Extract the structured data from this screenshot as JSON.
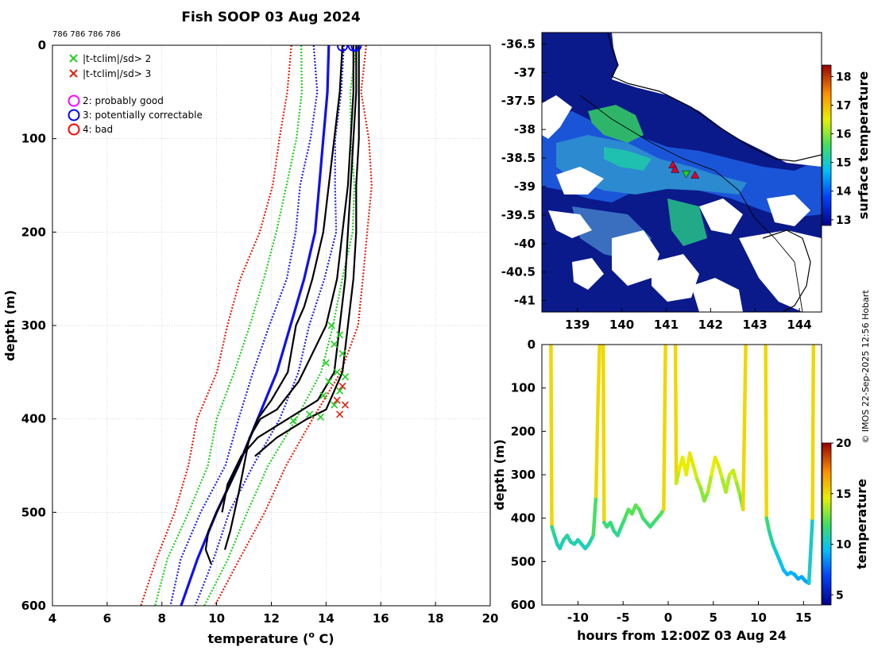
{
  "figure_title": "Fish SOOP 03 Aug 2024",
  "cast_ids": "786 786 786 786",
  "credit": "© IMOS 22-Sep-2025 12:56 Hobart",
  "colors": {
    "profile": "#000000",
    "clim_mean": "#1010ee",
    "sd1": "#2222dd",
    "sd2": "#22cc22",
    "sd3": "#dd2211",
    "flag2": "#ff00ff",
    "flag3": "#0000ff",
    "flag4": "#ff0000",
    "ocean_deep": "#0a1a8a",
    "land": "#ffffff"
  },
  "legend": {
    "x_green": "|t-tclim|/sd> 2",
    "x_red": "|t-tclim|/sd> 3",
    "flag2": "2: probably good",
    "flag3": "3: potentially correctable",
    "flag4": "4: bad"
  },
  "chart_data": [
    {
      "id": "profile",
      "type": "line",
      "xlabel": "temperature (",
      "xlabel_sup": "o",
      "xlabel_end": " C)",
      "ylabel": "depth (m)",
      "xlim": [
        4,
        20
      ],
      "ylim": [
        600,
        0
      ],
      "xticks": [
        "4",
        "6",
        "8",
        "10",
        "12",
        "14",
        "16",
        "18",
        "20"
      ],
      "yticks": [
        "0",
        "100",
        "200",
        "300",
        "400",
        "500",
        "600"
      ],
      "climatology": {
        "depth": [
          0,
          50,
          100,
          150,
          200,
          250,
          300,
          350,
          400,
          450,
          500,
          550,
          600
        ],
        "mean": [
          14.1,
          14.05,
          13.9,
          13.75,
          13.6,
          13.2,
          12.7,
          12.2,
          11.5,
          10.8,
          10.0,
          9.3,
          8.7
        ],
        "sd": [
          0.45,
          0.45,
          0.55,
          0.6,
          0.65,
          0.75,
          0.8,
          0.75,
          0.7,
          0.6,
          0.55,
          0.5,
          0.45
        ]
      },
      "profiles": [
        {
          "depth": [
            0,
            50,
            100,
            150,
            200,
            250,
            280,
            300,
            350,
            380,
            400,
            450,
            500,
            520,
            540,
            555
          ],
          "temp": [
            14.6,
            14.5,
            14.3,
            14.1,
            13.9,
            13.5,
            13.2,
            12.9,
            12.6,
            12.0,
            11.5,
            10.8,
            10.0,
            9.7,
            9.6,
            9.8
          ]
        },
        {
          "depth": [
            0,
            50,
            100,
            150,
            200,
            250,
            300,
            330,
            360,
            390,
            400,
            420,
            450,
            480,
            520,
            540
          ],
          "temp": [
            15.0,
            15.0,
            14.9,
            14.8,
            14.6,
            14.4,
            14.0,
            13.5,
            13.0,
            12.2,
            11.6,
            11.2,
            11.0,
            10.8,
            10.5,
            10.3
          ]
        },
        {
          "depth": [
            0,
            50,
            100,
            150,
            200,
            250,
            300,
            350,
            380,
            400,
            420,
            440,
            470,
            500
          ],
          "temp": [
            15.1,
            15.1,
            15.0,
            14.9,
            14.8,
            14.7,
            14.5,
            14.3,
            13.7,
            12.6,
            11.5,
            10.9,
            10.4,
            10.2
          ]
        },
        {
          "depth": [
            0,
            50,
            100,
            150,
            200,
            250,
            300,
            350,
            390,
            400,
            420,
            440
          ],
          "temp": [
            15.2,
            15.2,
            15.2,
            15.1,
            15.1,
            15.0,
            14.8,
            14.6,
            14.0,
            13.3,
            12.2,
            11.4
          ]
        }
      ],
      "flag_markers": [
        {
          "temp": 14.6,
          "depth": 0,
          "flag": "3"
        },
        {
          "temp": 15.0,
          "depth": 0,
          "flag": "3"
        },
        {
          "temp": 15.1,
          "depth": 0,
          "flag": "3"
        }
      ],
      "sd2_exceed": [
        {
          "temp": 14.2,
          "depth": 300
        },
        {
          "temp": 14.5,
          "depth": 310
        },
        {
          "temp": 14.3,
          "depth": 320
        },
        {
          "temp": 14.6,
          "depth": 330
        },
        {
          "temp": 14.0,
          "depth": 340
        },
        {
          "temp": 14.4,
          "depth": 350
        },
        {
          "temp": 14.7,
          "depth": 355
        },
        {
          "temp": 14.1,
          "depth": 360
        },
        {
          "temp": 14.5,
          "depth": 370
        },
        {
          "temp": 13.9,
          "depth": 375
        },
        {
          "temp": 14.3,
          "depth": 385
        },
        {
          "temp": 13.4,
          "depth": 395
        },
        {
          "temp": 13.8,
          "depth": 398
        },
        {
          "temp": 12.8,
          "depth": 402
        }
      ],
      "sd3_exceed": [
        {
          "temp": 14.6,
          "depth": 365
        },
        {
          "temp": 14.4,
          "depth": 380
        },
        {
          "temp": 14.7,
          "depth": 385
        },
        {
          "temp": 14.5,
          "depth": 395
        }
      ]
    },
    {
      "id": "map",
      "type": "heatmap",
      "xlim": [
        138.2,
        144.5
      ],
      "ylim": [
        -41.2,
        -36.3
      ],
      "xticks": [
        "139",
        "140",
        "141",
        "142",
        "143",
        "144"
      ],
      "yticks": [
        "-36.5",
        "-37",
        "-37.5",
        "-38",
        "-38.5",
        "-39",
        "-39.5",
        "-40",
        "-40.5",
        "-41"
      ],
      "colorbar_label": "surface temperature",
      "colorbar_ticks": [
        "13",
        "14",
        "15",
        "16",
        "17",
        "18"
      ],
      "colorbar_range": [
        12.8,
        18.4
      ],
      "cast_positions": [
        {
          "lon": 141.15,
          "lat": -38.62
        },
        {
          "lon": 141.2,
          "lat": -38.7
        },
        {
          "lon": 141.45,
          "lat": -38.78
        },
        {
          "lon": 141.65,
          "lat": -38.8
        }
      ]
    },
    {
      "id": "timeseries",
      "type": "line",
      "xlabel": "hours from 12:00Z 03 Aug 24",
      "ylabel": "depth (m)",
      "xlim": [
        -14,
        17
      ],
      "ylim": [
        600,
        0
      ],
      "xticks": [
        "-10",
        "-5",
        "0",
        "5",
        "10",
        "15"
      ],
      "yticks": [
        "0",
        "100",
        "200",
        "300",
        "400",
        "500",
        "600"
      ],
      "colorbar_label": "temperature",
      "colorbar_ticks": [
        "5",
        "10",
        "15",
        "20"
      ],
      "colorbar_range": [
        4,
        20
      ],
      "segments": [
        {
          "hours": [
            -13.0,
            -12.9,
            -12.6,
            -12.3,
            -12.0,
            -11.6,
            -11.2,
            -10.8,
            -10.4,
            -10.0,
            -9.6,
            -9.2,
            -8.8,
            -8.3,
            -8.0,
            -7.8,
            -7.6
          ],
          "depth": [
            0,
            420,
            440,
            460,
            470,
            450,
            440,
            455,
            460,
            450,
            460,
            470,
            460,
            440,
            350,
            150,
            0
          ]
        },
        {
          "hours": [
            -7.2,
            -7.1,
            -6.8,
            -6.4,
            -6.0,
            -5.6,
            -5.2,
            -4.8,
            -4.4,
            -4.0,
            -3.6,
            -3.2,
            -2.8,
            -2.4,
            -2.0,
            -1.6,
            -1.2,
            -0.8,
            -0.5,
            -0.3
          ],
          "depth": [
            0,
            410,
            420,
            410,
            430,
            440,
            420,
            400,
            380,
            390,
            370,
            380,
            400,
            410,
            420,
            410,
            400,
            390,
            380,
            0
          ]
        },
        {
          "hours": [
            0.8,
            0.9,
            1.2,
            1.6,
            2.0,
            2.4,
            2.8,
            3.2,
            3.6,
            4.0,
            4.4,
            4.8,
            5.2,
            5.6,
            6.0,
            6.4,
            6.8,
            7.2,
            7.6,
            8.0,
            8.3,
            8.6
          ],
          "depth": [
            0,
            320,
            290,
            260,
            300,
            250,
            280,
            310,
            330,
            360,
            340,
            300,
            260,
            280,
            310,
            340,
            300,
            290,
            320,
            350,
            380,
            0
          ]
        },
        {
          "hours": [
            10.8,
            10.9,
            11.2,
            11.6,
            12.0,
            12.4,
            12.8,
            13.2,
            13.6,
            14.0,
            14.4,
            14.8,
            15.2,
            15.6,
            16.0,
            16.1
          ],
          "depth": [
            0,
            400,
            430,
            460,
            480,
            500,
            520,
            530,
            525,
            530,
            540,
            535,
            545,
            550,
            400,
            0
          ]
        }
      ]
    }
  ]
}
